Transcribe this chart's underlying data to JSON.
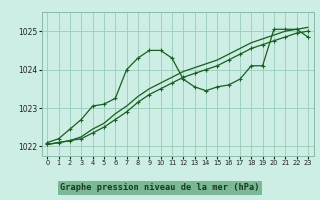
{
  "title": "Graphe pression niveau de la mer (hPa)",
  "background_color": "#cceee4",
  "grid_color": "#99ccbb",
  "line_color": "#1a5e20",
  "marker_color": "#1a5e20",
  "label_bg": "#5a9a6a",
  "label_text_color": "#1a3a1a",
  "xlim": [
    -0.5,
    23.5
  ],
  "ylim": [
    1021.75,
    1025.5
  ],
  "yticks": [
    1022,
    1023,
    1024,
    1025
  ],
  "xticks": [
    0,
    1,
    2,
    3,
    4,
    5,
    6,
    7,
    8,
    9,
    10,
    11,
    12,
    13,
    14,
    15,
    16,
    17,
    18,
    19,
    20,
    21,
    22,
    23
  ],
  "line1_y": [
    1022.1,
    1022.2,
    1022.45,
    1022.7,
    1023.05,
    1023.1,
    1023.25,
    1024.0,
    1024.3,
    1024.5,
    1024.5,
    1024.3,
    1023.75,
    1023.55,
    1023.45,
    1023.55,
    1023.6,
    1023.75,
    1024.1,
    1024.1,
    1025.05,
    1025.05,
    1025.05,
    1024.85
  ],
  "line2_y": [
    1022.05,
    1022.1,
    1022.15,
    1022.2,
    1022.35,
    1022.5,
    1022.7,
    1022.9,
    1023.15,
    1023.35,
    1023.5,
    1023.65,
    1023.8,
    1023.9,
    1024.0,
    1024.1,
    1024.25,
    1024.4,
    1024.55,
    1024.65,
    1024.75,
    1024.85,
    1024.95,
    1025.0
  ],
  "line3_y": [
    1022.05,
    1022.1,
    1022.15,
    1022.25,
    1022.45,
    1022.6,
    1022.85,
    1023.05,
    1023.3,
    1023.5,
    1023.65,
    1023.8,
    1023.95,
    1024.05,
    1024.15,
    1024.25,
    1024.4,
    1024.55,
    1024.7,
    1024.8,
    1024.9,
    1025.0,
    1025.05,
    1025.1
  ]
}
